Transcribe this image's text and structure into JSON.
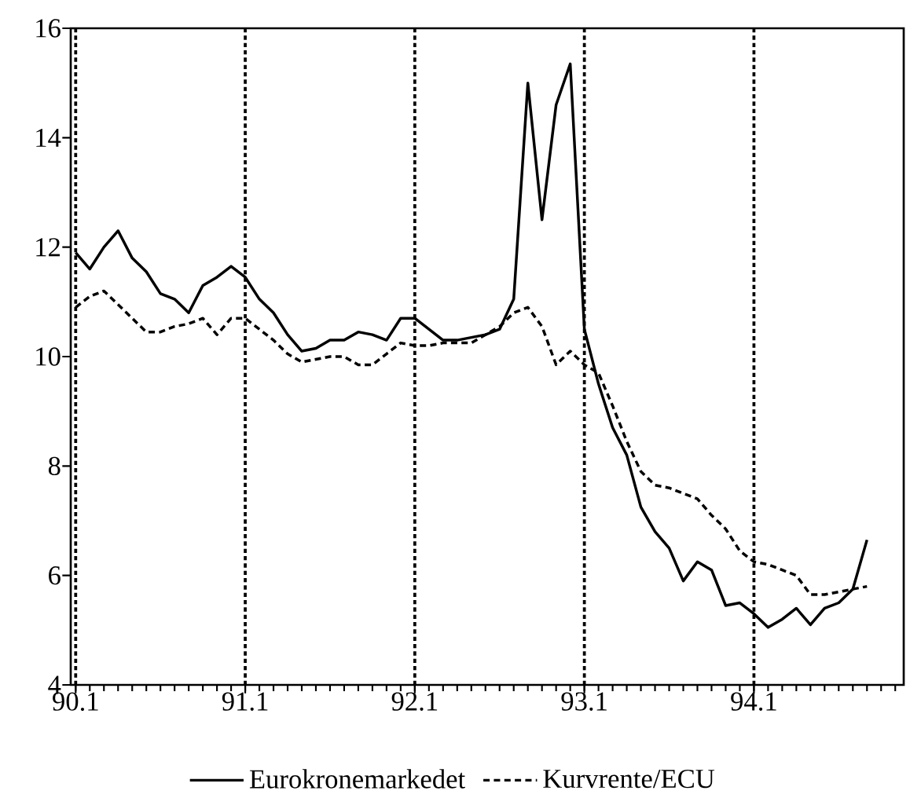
{
  "chart_data": {
    "type": "line",
    "categories": [
      "90.1",
      null,
      null,
      null,
      null,
      null,
      null,
      null,
      null,
      null,
      null,
      null,
      "91.1",
      null,
      null,
      null,
      null,
      null,
      null,
      null,
      null,
      null,
      null,
      null,
      "92.1",
      null,
      null,
      null,
      null,
      null,
      null,
      null,
      null,
      null,
      null,
      null,
      "93.1",
      null,
      null,
      null,
      null,
      null,
      null,
      null,
      null,
      null,
      null,
      null,
      "94.1",
      null,
      null,
      null,
      null,
      null,
      null,
      null,
      null
    ],
    "series": [
      {
        "name": "Eurokronemarkedet",
        "color": "#000000",
        "line_style": "solid",
        "values": [
          11.9,
          11.6,
          12.0,
          12.3,
          11.8,
          11.55,
          11.15,
          11.05,
          10.8,
          11.3,
          11.45,
          11.65,
          11.45,
          11.05,
          10.8,
          10.4,
          10.1,
          10.15,
          10.3,
          10.3,
          10.45,
          10.4,
          10.3,
          10.7,
          10.7,
          10.5,
          10.3,
          10.3,
          10.35,
          10.4,
          10.5,
          11.05,
          15.0,
          12.5,
          14.6,
          15.35,
          10.5,
          9.5,
          8.7,
          8.2,
          7.25,
          6.8,
          6.5,
          5.9,
          6.25,
          6.1,
          5.45,
          5.5,
          5.3,
          5.05,
          5.2,
          5.4,
          5.1,
          5.4,
          5.5,
          5.75,
          6.65
        ]
      },
      {
        "name": "Kurvrente/ECU",
        "color": "#000000",
        "line_style": "dashed",
        "values": [
          10.9,
          11.1,
          11.2,
          10.95,
          10.7,
          10.45,
          10.45,
          10.55,
          10.6,
          10.7,
          10.4,
          10.7,
          10.7,
          10.5,
          10.3,
          10.05,
          9.9,
          9.95,
          10.0,
          10.0,
          9.85,
          9.85,
          10.05,
          10.25,
          10.2,
          10.2,
          10.25,
          10.25,
          10.25,
          10.4,
          10.55,
          10.8,
          10.9,
          10.55,
          9.85,
          10.1,
          9.85,
          9.7,
          9.1,
          8.45,
          7.9,
          7.65,
          7.6,
          7.5,
          7.4,
          7.1,
          6.85,
          6.45,
          6.25,
          6.2,
          6.1,
          6.0,
          5.65,
          5.65,
          5.7,
          5.75,
          5.8
        ]
      }
    ],
    "ylim": [
      4,
      16
    ],
    "yticks": [
      4,
      6,
      8,
      10,
      12,
      14,
      16
    ],
    "grid": "x",
    "legend": "bottom",
    "marker": "none"
  }
}
